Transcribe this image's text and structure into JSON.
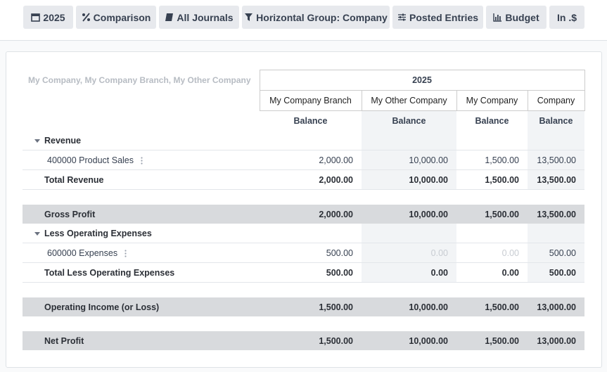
{
  "toolbar": {
    "buttons": [
      "2025",
      "Comparison",
      "All Journals",
      "Horizontal Group: Company",
      "Posted Entries",
      "Budget",
      "In .$"
    ]
  },
  "report": {
    "companies": "My Company, My Company Branch, My Other Company",
    "period": "2025",
    "columns": [
      "My Company Branch",
      "My Other Company",
      "My Company",
      "Company"
    ],
    "measures": [
      "Balance",
      "Balance",
      "Balance",
      "Balance"
    ],
    "rows": [
      {
        "section": "Revenue"
      },
      {
        "line": "400000 Product Sales",
        "values": [
          "2,000.00",
          "10,000.00",
          "1,500.00",
          "13,500.00"
        ]
      },
      {
        "total": "Total Revenue",
        "values": [
          "2,000.00",
          "10,000.00",
          "1,500.00",
          "13,500.00"
        ]
      },
      {
        "summary": "Gross Profit",
        "values": [
          "2,000.00",
          "10,000.00",
          "1,500.00",
          "13,500.00"
        ]
      },
      {
        "section": "Less Operating Expenses"
      },
      {
        "line": "600000 Expenses",
        "values": [
          "500.00",
          "0.00",
          "0.00",
          "500.00"
        ]
      },
      {
        "total": "Total Less Operating Expenses",
        "values": [
          "500.00",
          "0.00",
          "0.00",
          "500.00"
        ]
      },
      {
        "summary": "Operating Income (or Loss)",
        "values": [
          "1,500.00",
          "10,000.00",
          "1,500.00",
          "13,000.00"
        ]
      },
      {
        "summary": "Net Profit",
        "values": [
          "1,500.00",
          "10,000.00",
          "1,500.00",
          "13,000.00"
        ]
      }
    ]
  }
}
